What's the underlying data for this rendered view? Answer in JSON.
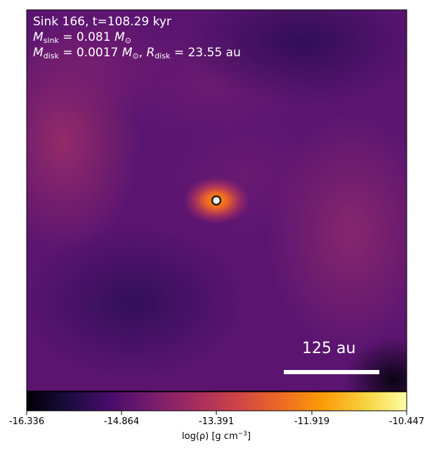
{
  "annotation": {
    "line1": "Sink 166, t=108.29 kyr",
    "sink_mass_label_sub": "sink",
    "sink_mass_value": " = 0.081 ",
    "disk_mass_label_sub": "disk",
    "disk_mass_value": " = 0.0017 ",
    "disk_radius_label_sub": "disk",
    "disk_radius_value": " = 23.55 au",
    "solar_sub": "⊙"
  },
  "scale_bar": {
    "label": "125 au"
  },
  "colorbar": {
    "ticks": [
      "-16.336",
      "-14.864",
      "-13.391",
      "-11.919",
      "-10.447"
    ],
    "label_main": "log(ρ) [g cm",
    "label_exp": "−3",
    "label_end": "]",
    "colormap": [
      "#000004",
      "#1b0c41",
      "#4a0c6b",
      "#781c6d",
      "#a52c60",
      "#cf4446",
      "#ed6925",
      "#fb9b06",
      "#f7d13d",
      "#fcffa4"
    ]
  }
}
